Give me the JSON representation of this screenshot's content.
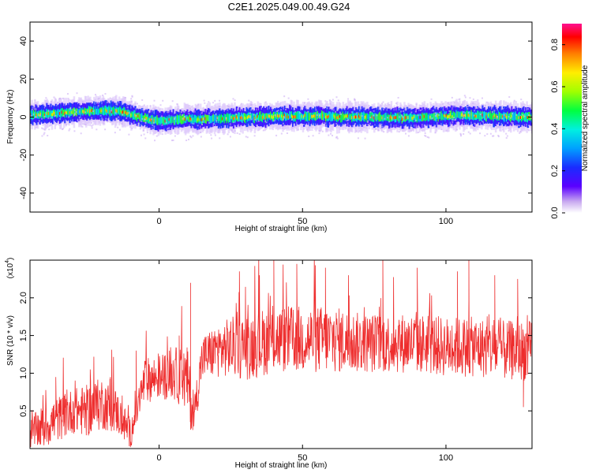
{
  "title": "C2E1.2025.049.00.49.G24",
  "chart_data": [
    {
      "type": "heatmap",
      "xlabel": "Height of straight line (km)",
      "ylabel": "Frequency (Hz)",
      "xlim": [
        -45,
        130
      ],
      "ylim": [
        -50,
        50
      ],
      "xticks": [
        0,
        50,
        100
      ],
      "yticks": [
        -40,
        -20,
        0,
        20,
        40
      ],
      "ytick_labels": [
        "-40",
        "-20",
        "0",
        "20",
        "40"
      ],
      "colorbar": {
        "label": "Normalized spectral amplitude",
        "range": [
          0.0,
          0.9
        ],
        "ticks": [
          0.0,
          0.2,
          0.4,
          0.6,
          0.8
        ],
        "tick_labels": [
          "0.0",
          "0.2",
          "0.4",
          "0.6",
          "0.8"
        ]
      },
      "band": {
        "center_track": [
          [
            -45,
            1.0
          ],
          [
            -35,
            2.0
          ],
          [
            -25,
            3.0
          ],
          [
            -18,
            3.5
          ],
          [
            -12,
            2.5
          ],
          [
            -8,
            0.5
          ],
          [
            -3,
            -1.5
          ],
          [
            2,
            -2.0
          ],
          [
            8,
            -1.0
          ],
          [
            15,
            -1.0
          ],
          [
            25,
            -0.5
          ],
          [
            35,
            0.0
          ],
          [
            45,
            0.5
          ],
          [
            55,
            0.5
          ],
          [
            65,
            0.0
          ],
          [
            75,
            0.0
          ],
          [
            85,
            -0.5
          ],
          [
            95,
            0.0
          ],
          [
            105,
            1.0
          ],
          [
            115,
            0.5
          ],
          [
            130,
            0.0
          ]
        ],
        "core_halfwidth_hz": 2,
        "spread_halfwidth_hz": 6
      }
    },
    {
      "type": "line",
      "xlabel": "Height of straight line (km)",
      "ylabel": "SNR (10 * v/v)",
      "y_multiplier": "(x10",
      "y_multiplier_exp": "4",
      "y_multiplier_close": ")",
      "xlim": [
        -45,
        130
      ],
      "ylim": [
        0,
        2.5
      ],
      "xticks": [
        0,
        50,
        100
      ],
      "yticks": [
        0.5,
        1.0,
        1.5,
        2.0
      ],
      "ytick_labels": [
        "0.5",
        "1.0",
        "1.5",
        "2.0"
      ],
      "series": [
        {
          "color": "#ee2d2d",
          "envelope": {
            "x": [
              -45,
              -40,
              -35,
              -30,
              -25,
              -20,
              -15,
              -10,
              -5,
              0,
              5,
              10,
              12,
              15,
              20,
              25,
              30,
              40,
              50,
              60,
              70,
              80,
              90,
              100,
              110,
              120,
              130
            ],
            "mean": [
              0.2,
              0.3,
              0.4,
              0.5,
              0.5,
              0.6,
              0.5,
              0.2,
              0.9,
              0.95,
              1.0,
              0.9,
              0.4,
              1.2,
              1.3,
              1.35,
              1.35,
              1.45,
              1.45,
              1.45,
              1.4,
              1.4,
              1.4,
              1.35,
              1.35,
              1.3,
              1.3
            ],
            "amplitude": [
              0.2,
              0.3,
              0.3,
              0.3,
              0.35,
              0.35,
              0.3,
              0.2,
              0.3,
              0.3,
              0.35,
              0.45,
              0.25,
              0.3,
              0.35,
              0.4,
              0.45,
              0.45,
              0.45,
              0.45,
              0.4,
              0.4,
              0.4,
              0.4,
              0.4,
              0.4,
              0.4
            ]
          },
          "peaks": [
            [
              -36,
              0.95
            ],
            [
              -24,
              1.05
            ],
            [
              -17,
              0.95
            ],
            [
              -8,
              1.3
            ],
            [
              7,
              1.5
            ],
            [
              11,
              2.2
            ],
            [
              28,
              2.35
            ],
            [
              35,
              2.3
            ],
            [
              40,
              2.5
            ],
            [
              48,
              2.45
            ],
            [
              58,
              2.4
            ],
            [
              66,
              2.3
            ],
            [
              78,
              2.5
            ],
            [
              90,
              2.4
            ],
            [
              104,
              2.35
            ],
            [
              108,
              2.5
            ],
            [
              117,
              2.3
            ],
            [
              125,
              2.25
            ]
          ],
          "troughs": [
            [
              -10,
              0.02
            ],
            [
              11,
              0.25
            ],
            [
              127,
              0.55
            ]
          ]
        }
      ]
    }
  ]
}
